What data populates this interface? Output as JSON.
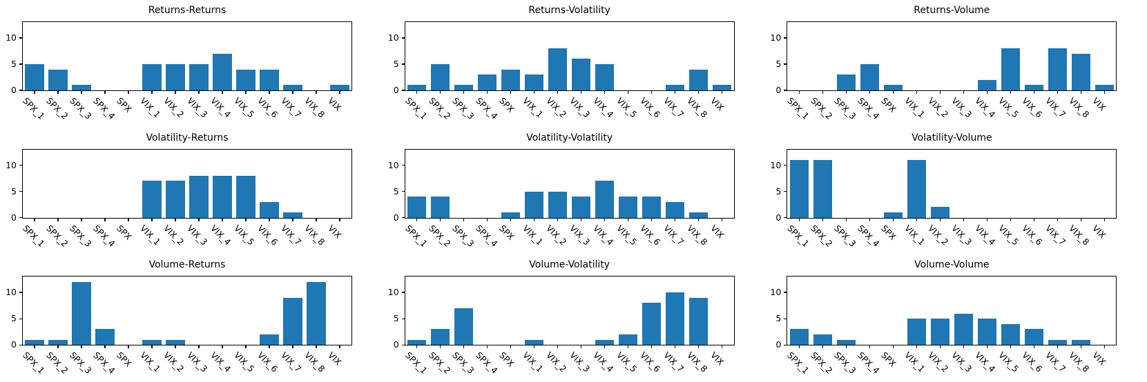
{
  "figure": {
    "background": "#ffffff",
    "bar_color": "#1f77b4",
    "axis_color": "#000000",
    "text_color": "#000000"
  },
  "chart_data": [
    {
      "type": "bar",
      "title": "Returns-Returns",
      "categories": [
        "SPX_1",
        "SPX_2",
        "SPX_3",
        "SPX_4",
        "SPX",
        "VIX_1",
        "VIX_2",
        "VIX_3",
        "VIX_4",
        "VIX_5",
        "VIX_6",
        "VIX_7",
        "VIX_8",
        "VIX"
      ],
      "values": [
        5,
        4,
        1,
        0,
        0,
        5,
        5,
        5,
        7,
        4,
        4,
        1,
        0,
        1
      ],
      "xlabel": "",
      "ylabel": "",
      "ylim": [
        0,
        13
      ],
      "yticks": [
        0,
        5,
        10
      ],
      "grid": false,
      "bar_width": 0.8
    },
    {
      "type": "bar",
      "title": "Returns-Volatility",
      "categories": [
        "SPX_1",
        "SPX_2",
        "SPX_3",
        "SPX_4",
        "SPX",
        "VIX_1",
        "VIX_2",
        "VIX_3",
        "VIX_4",
        "VIX_5",
        "VIX_6",
        "VIX_7",
        "VIX_8",
        "VIX"
      ],
      "values": [
        1,
        5,
        1,
        3,
        4,
        3,
        8,
        6,
        5,
        0,
        0,
        1,
        4,
        1
      ],
      "xlabel": "",
      "ylabel": "",
      "ylim": [
        0,
        13
      ],
      "yticks": [
        0,
        5,
        10
      ],
      "grid": false,
      "bar_width": 0.8
    },
    {
      "type": "bar",
      "title": "Returns-Volume",
      "categories": [
        "SPX_1",
        "SPX_2",
        "SPX_3",
        "SPX_4",
        "SPX",
        "VIX_1",
        "VIX_2",
        "VIX_3",
        "VIX_4",
        "VIX_5",
        "VIX_6",
        "VIX_7",
        "VIX_8",
        "VIX"
      ],
      "values": [
        0,
        0,
        3,
        5,
        1,
        0,
        0,
        0,
        2,
        8,
        1,
        8,
        7,
        1
      ],
      "xlabel": "",
      "ylabel": "",
      "ylim": [
        0,
        13
      ],
      "yticks": [
        0,
        5,
        10
      ],
      "grid": false,
      "bar_width": 0.8
    },
    {
      "type": "bar",
      "title": "Volatility-Returns",
      "categories": [
        "SPX_1",
        "SPX_2",
        "SPX_3",
        "SPX_4",
        "SPX",
        "VIX_1",
        "VIX_2",
        "VIX_3",
        "VIX_4",
        "VIX_5",
        "VIX_6",
        "VIX_7",
        "VIX_8",
        "VIX"
      ],
      "values": [
        0,
        0,
        0,
        0,
        0,
        7,
        7,
        8,
        8,
        8,
        3,
        1,
        0,
        0
      ],
      "xlabel": "",
      "ylabel": "",
      "ylim": [
        0,
        13
      ],
      "yticks": [
        0,
        5,
        10
      ],
      "grid": false,
      "bar_width": 0.8
    },
    {
      "type": "bar",
      "title": "Volatility-Volatility",
      "categories": [
        "SPX_1",
        "SPX_2",
        "SPX_3",
        "SPX_4",
        "SPX",
        "VIX_1",
        "VIX_2",
        "VIX_3",
        "VIX_4",
        "VIX_5",
        "VIX_6",
        "VIX_7",
        "VIX_8",
        "VIX"
      ],
      "values": [
        4,
        4,
        0,
        0,
        1,
        5,
        5,
        4,
        7,
        4,
        4,
        3,
        1,
        0
      ],
      "xlabel": "",
      "ylabel": "",
      "ylim": [
        0,
        13
      ],
      "yticks": [
        0,
        5,
        10
      ],
      "grid": false,
      "bar_width": 0.8
    },
    {
      "type": "bar",
      "title": "Volatility-Volume",
      "categories": [
        "SPX_1",
        "SPX_2",
        "SPX_3",
        "SPX_4",
        "SPX",
        "VIX_1",
        "VIX_2",
        "VIX_3",
        "VIX_4",
        "VIX_5",
        "VIX_6",
        "VIX_7",
        "VIX_8",
        "VIX"
      ],
      "values": [
        11,
        11,
        0,
        0,
        1,
        11,
        2,
        0,
        0,
        0,
        0,
        0,
        0,
        0
      ],
      "xlabel": "",
      "ylabel": "",
      "ylim": [
        0,
        13
      ],
      "yticks": [
        0,
        5,
        10
      ],
      "grid": false,
      "bar_width": 0.8
    },
    {
      "type": "bar",
      "title": "Volume-Returns",
      "categories": [
        "SPX_1",
        "SPX_2",
        "SPX_3",
        "SPX_4",
        "SPX",
        "VIX_1",
        "VIX_2",
        "VIX_3",
        "VIX_4",
        "VIX_5",
        "VIX_6",
        "VIX_7",
        "VIX_8",
        "VIX"
      ],
      "values": [
        1,
        1,
        12,
        3,
        0,
        1,
        1,
        0,
        0,
        0,
        2,
        9,
        12,
        0
      ],
      "xlabel": "",
      "ylabel": "",
      "ylim": [
        0,
        13
      ],
      "yticks": [
        0,
        5,
        10
      ],
      "grid": false,
      "bar_width": 0.8
    },
    {
      "type": "bar",
      "title": "Volume-Volatility",
      "categories": [
        "SPX_1",
        "SPX_2",
        "SPX_3",
        "SPX_4",
        "SPX",
        "VIX_1",
        "VIX_2",
        "VIX_3",
        "VIX_4",
        "VIX_5",
        "VIX_6",
        "VIX_7",
        "VIX_8",
        "VIX"
      ],
      "values": [
        1,
        3,
        7,
        0,
        0,
        1,
        0,
        0,
        1,
        2,
        8,
        10,
        9,
        0
      ],
      "xlabel": "",
      "ylabel": "",
      "ylim": [
        0,
        13
      ],
      "yticks": [
        0,
        5,
        10
      ],
      "grid": false,
      "bar_width": 0.8
    },
    {
      "type": "bar",
      "title": "Volume-Volume",
      "categories": [
        "SPX_1",
        "SPX_2",
        "SPX_3",
        "SPX_4",
        "SPX",
        "VIX_1",
        "VIX_2",
        "VIX_3",
        "VIX_4",
        "VIX_5",
        "VIX_6",
        "VIX_7",
        "VIX_8",
        "VIX"
      ],
      "values": [
        3,
        2,
        1,
        0,
        0,
        5,
        5,
        6,
        5,
        4,
        3,
        1,
        1,
        0
      ],
      "xlabel": "",
      "ylabel": "",
      "ylim": [
        0,
        13
      ],
      "yticks": [
        0,
        5,
        10
      ],
      "grid": false,
      "bar_width": 0.8
    }
  ]
}
